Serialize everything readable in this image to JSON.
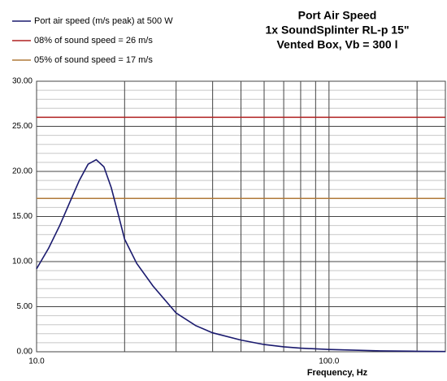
{
  "chart_data": {
    "type": "line",
    "title": [
      "Port Air Speed",
      "1x SoundSplinter RL-p 15\"",
      "Vented Box, Vb = 300 l"
    ],
    "x_label": "Frequency, Hz",
    "x_log": true,
    "xlim": [
      10,
      250
    ],
    "ylim": [
      0,
      30
    ],
    "xticks": [
      {
        "value": 10,
        "label": "10.0"
      },
      {
        "value": 100,
        "label": "100.0"
      }
    ],
    "xminor": [
      20,
      30,
      40,
      50,
      60,
      70,
      80,
      90,
      200
    ],
    "yticks": [
      {
        "value": 0,
        "label": "0.00"
      },
      {
        "value": 5,
        "label": "5.00"
      },
      {
        "value": 10,
        "label": "10.00"
      },
      {
        "value": 15,
        "label": "15.00"
      },
      {
        "value": 20,
        "label": "20.00"
      },
      {
        "value": 25,
        "label": "25.00"
      },
      {
        "value": 30,
        "label": "30.00"
      }
    ],
    "yminor": [
      1,
      2,
      3,
      4,
      6,
      7,
      8,
      9,
      11,
      12,
      13,
      14,
      16,
      17,
      18,
      19,
      21,
      22,
      23,
      24,
      26,
      27,
      28,
      29
    ],
    "grid": true,
    "x": [
      10,
      11,
      12,
      13,
      14,
      15,
      16,
      17,
      18,
      19,
      20,
      22,
      25,
      30,
      35,
      40,
      50,
      60,
      70,
      80,
      100,
      150,
      200,
      250
    ],
    "series": [
      {
        "name": "Port air speed (m/s peak) at 500 W",
        "color": "#1a1a6e",
        "values": [
          9.2,
          11.5,
          14.0,
          16.6,
          19.0,
          20.8,
          21.3,
          20.5,
          18.2,
          15.3,
          12.5,
          9.8,
          7.3,
          4.3,
          2.9,
          2.1,
          1.3,
          0.8,
          0.55,
          0.4,
          0.25,
          0.1,
          0.05,
          0.03
        ]
      }
    ],
    "hlines": [
      {
        "name": "08% of sound speed = 26 m/s",
        "color": "#b02020",
        "value": 26
      },
      {
        "name": "05% of sound speed = 17 m/s",
        "color": "#b07a3a",
        "value": 17
      }
    ]
  }
}
